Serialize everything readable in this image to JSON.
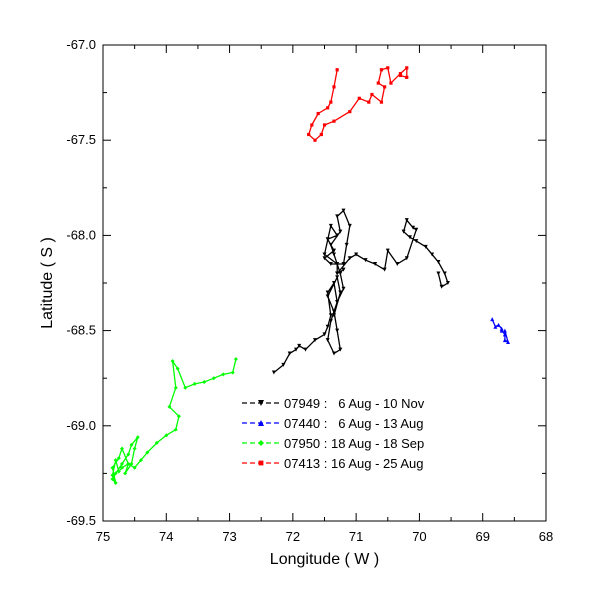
{
  "chart_data": {
    "type": "line",
    "xlabel": "Longitude ( W )",
    "ylabel": "Latitude ( S )",
    "xlim": [
      75,
      68
    ],
    "ylim": [
      -69.5,
      -67.0
    ],
    "xticks": [
      "75",
      "74",
      "73",
      "72",
      "71",
      "70",
      "69",
      "68"
    ],
    "yticks": [
      "-67.0",
      "-67.5",
      "-68.0",
      "-68.5",
      "-69.0",
      "-69.5"
    ],
    "legend_position": "lower-right",
    "series": [
      {
        "name": "07949 :   6 Aug - 10 Nov",
        "color": "#000000",
        "marker": "triangle-down",
        "x": [
          72.3,
          72.15,
          72.05,
          71.95,
          71.9,
          71.8,
          71.65,
          71.5,
          71.45,
          71.4,
          71.45,
          71.35,
          71.3,
          71.4,
          71.45,
          71.35,
          71.25,
          71.3,
          71.35,
          71.45,
          71.3,
          71.25,
          71.35,
          71.3,
          71.2,
          71.25,
          71.35,
          71.4,
          71.25,
          71.3,
          71.2,
          71.1,
          71.15,
          71.2,
          71.4,
          71.5,
          71.35,
          71.45,
          71.3,
          71.4,
          71.5,
          71.3,
          71.3,
          71.2,
          71.3,
          71.1,
          71.0,
          70.85,
          70.7,
          70.55,
          70.5,
          70.35,
          70.2,
          70.05,
          70.1,
          70.2,
          70.25,
          70.15,
          70.05,
          69.9,
          69.8,
          69.7,
          69.6,
          69.55,
          69.65,
          69.7
        ],
        "y": [
          -68.72,
          -68.68,
          -68.62,
          -68.6,
          -68.58,
          -68.6,
          -68.55,
          -68.52,
          -68.48,
          -68.42,
          -68.3,
          -68.25,
          -68.35,
          -68.45,
          -68.55,
          -68.62,
          -68.6,
          -68.5,
          -68.4,
          -68.32,
          -68.22,
          -68.3,
          -68.42,
          -68.35,
          -68.28,
          -68.2,
          -68.1,
          -68.05,
          -67.98,
          -67.9,
          -67.87,
          -67.95,
          -68.05,
          -68.15,
          -68.15,
          -68.12,
          -68.08,
          -68.02,
          -68.0,
          -67.95,
          -68.1,
          -68.15,
          -68.2,
          -68.18,
          -68.2,
          -68.12,
          -68.1,
          -68.13,
          -68.15,
          -68.18,
          -68.08,
          -68.15,
          -68.12,
          -67.97,
          -67.96,
          -67.92,
          -67.98,
          -68.01,
          -68.03,
          -68.06,
          -68.1,
          -68.14,
          -68.2,
          -68.25,
          -68.27,
          -68.2
        ]
      },
      {
        "name": "07440 :   6 Aug - 13 Aug",
        "color": "#0000ff",
        "marker": "triangle-up",
        "x": [
          68.85,
          68.8,
          68.75,
          68.7,
          68.7,
          68.65,
          68.65,
          68.6,
          68.65
        ],
        "y": [
          -68.44,
          -68.48,
          -68.47,
          -68.49,
          -68.5,
          -68.52,
          -68.55,
          -68.56,
          -68.5
        ]
      },
      {
        "name": "07950 : 18 Aug - 18 Sep",
        "color": "#00ff00",
        "marker": "diamond",
        "x": [
          72.9,
          72.95,
          73.1,
          73.25,
          73.4,
          73.55,
          73.7,
          73.82,
          73.9,
          73.85,
          73.95,
          73.8,
          73.85,
          74.0,
          74.15,
          74.3,
          74.4,
          74.5,
          74.6,
          74.7,
          74.75,
          74.8,
          74.85,
          74.8,
          74.85,
          74.75,
          74.7,
          74.6,
          74.65,
          74.55,
          74.5,
          74.45,
          74.55,
          74.6,
          74.7,
          74.8,
          74.85,
          74.8
        ],
        "y": [
          -68.65,
          -68.72,
          -68.73,
          -68.75,
          -68.77,
          -68.78,
          -68.8,
          -68.7,
          -68.66,
          -68.8,
          -68.9,
          -68.95,
          -69.02,
          -69.05,
          -69.09,
          -69.14,
          -69.18,
          -69.22,
          -69.2,
          -69.22,
          -69.24,
          -69.18,
          -69.26,
          -69.3,
          -69.22,
          -69.17,
          -69.12,
          -69.2,
          -69.25,
          -69.2,
          -69.12,
          -69.06,
          -69.1,
          -69.15,
          -69.2,
          -69.25,
          -69.28,
          -69.3
        ]
      },
      {
        "name": "07413 : 16 Aug - 25 Aug",
        "color": "#ff0000",
        "marker": "square",
        "x": [
          71.3,
          71.35,
          71.4,
          71.45,
          71.6,
          71.7,
          71.75,
          71.65,
          71.55,
          71.5,
          71.35,
          71.1,
          70.95,
          70.8,
          70.75,
          70.6,
          70.55,
          70.65,
          70.6,
          70.5,
          70.45,
          70.3,
          70.2,
          70.2,
          70.3
        ],
        "y": [
          -67.13,
          -67.22,
          -67.3,
          -67.33,
          -67.36,
          -67.42,
          -67.47,
          -67.5,
          -67.47,
          -67.42,
          -67.4,
          -67.35,
          -67.28,
          -67.3,
          -67.26,
          -67.3,
          -67.22,
          -67.2,
          -67.13,
          -67.12,
          -67.2,
          -67.15,
          -67.12,
          -67.17,
          -67.16
        ]
      }
    ]
  }
}
